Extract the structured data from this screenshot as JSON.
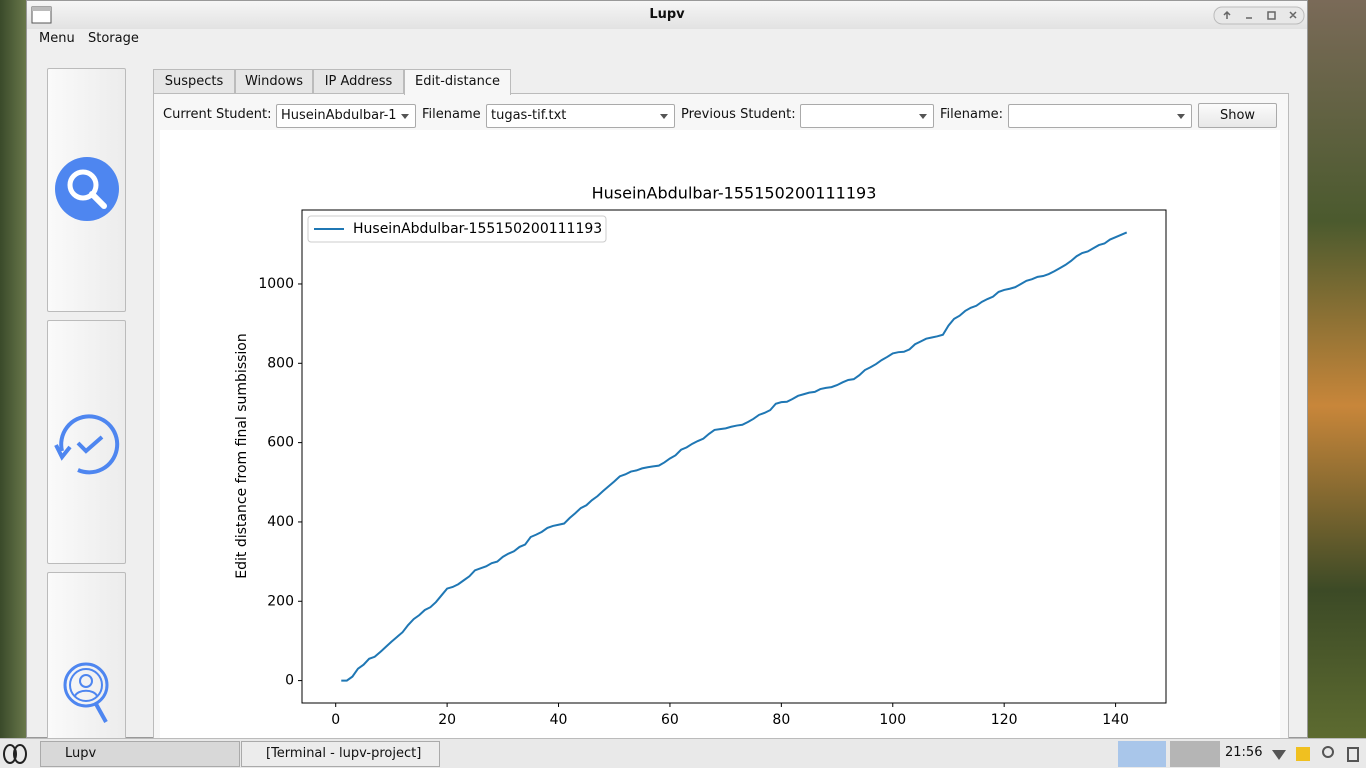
{
  "window": {
    "title": "Lupv"
  },
  "menu": [
    "Menu",
    "Storage"
  ],
  "tabs": [
    "Suspects",
    "Windows",
    "IP Address",
    "Edit-distance"
  ],
  "form": {
    "current_student_label": "Current Student:",
    "current_student": "HuseinAbdulbar-1",
    "filename_label": "Filename",
    "filename": "tugas-tif.txt",
    "previous_student_label": "Previous Student:",
    "previous_filename_label": "Filename:",
    "show_button": "Show"
  },
  "taskbar": {
    "tasks": [
      "Lupv",
      "[Terminal - lupv-project]"
    ],
    "clock": "21:56"
  },
  "chart_data": {
    "type": "line",
    "title": "HuseinAbdulbar-155150200111193",
    "y_label": "Edit distance from final sumbission",
    "legend": "upper left",
    "xlim": [
      -6.05,
      149.05
    ],
    "xticks": [
      0,
      20,
      40,
      60,
      80,
      100,
      120,
      140
    ],
    "ylim": [
      -56.5,
      1186.5
    ],
    "yticks": [
      0,
      200,
      400,
      600,
      800,
      1000
    ],
    "series": [
      {
        "name": "HuseinAbdulbar-155150200111193",
        "color": "#1f77b4",
        "x": [
          1,
          2,
          3,
          4,
          5,
          6,
          7,
          8,
          9,
          10,
          11,
          12,
          13,
          14,
          15,
          16,
          17,
          18,
          19,
          20,
          21,
          22,
          23,
          24,
          25,
          26,
          27,
          28,
          29,
          30,
          31,
          32,
          33,
          34,
          35,
          36,
          37,
          38,
          39,
          40,
          41,
          42,
          43,
          44,
          45,
          46,
          47,
          48,
          49,
          50,
          51,
          52,
          53,
          54,
          55,
          56,
          57,
          58,
          59,
          60,
          61,
          62,
          63,
          64,
          65,
          66,
          67,
          68,
          69,
          70,
          71,
          72,
          73,
          74,
          75,
          76,
          77,
          78,
          79,
          80,
          81,
          82,
          83,
          84,
          85,
          86,
          87,
          88,
          89,
          90,
          91,
          92,
          93,
          94,
          95,
          96,
          97,
          98,
          99,
          100,
          101,
          102,
          103,
          104,
          105,
          106,
          107,
          108,
          109,
          110,
          111,
          112,
          113,
          114,
          115,
          116,
          117,
          118,
          119,
          120,
          121,
          122,
          123,
          124,
          125,
          126,
          127,
          128,
          129,
          130,
          131,
          132,
          133,
          134,
          135,
          136,
          137,
          138,
          139,
          140,
          141,
          142
        ],
        "values": [
          0,
          0,
          10,
          30,
          40,
          55,
          60,
          72,
          85,
          98,
          110,
          122,
          140,
          155,
          165,
          178,
          185,
          198,
          215,
          232,
          236,
          243,
          253,
          263,
          278,
          283,
          288,
          296,
          300,
          312,
          320,
          326,
          337,
          343,
          362,
          368,
          375,
          385,
          390,
          393,
          396,
          410,
          422,
          435,
          442,
          455,
          465,
          478,
          490,
          502,
          515,
          520,
          527,
          530,
          535,
          538,
          540,
          542,
          550,
          560,
          568,
          582,
          588,
          597,
          604,
          610,
          622,
          632,
          634,
          636,
          640,
          643,
          645,
          652,
          660,
          670,
          675,
          682,
          698,
          702,
          703,
          710,
          718,
          722,
          726,
          728,
          735,
          738,
          740,
          745,
          752,
          758,
          760,
          770,
          783,
          790,
          798,
          808,
          816,
          825,
          828,
          829,
          835,
          848,
          855,
          862,
          865,
          868,
          872,
          895,
          912,
          920,
          932,
          940,
          945,
          955,
          962,
          968,
          980,
          985,
          988,
          992,
          1000,
          1008,
          1012,
          1018,
          1020,
          1025,
          1032,
          1040,
          1048,
          1058,
          1070,
          1078,
          1082,
          1090,
          1098,
          1102,
          1112,
          1118,
          1124,
          1130
        ]
      }
    ]
  }
}
